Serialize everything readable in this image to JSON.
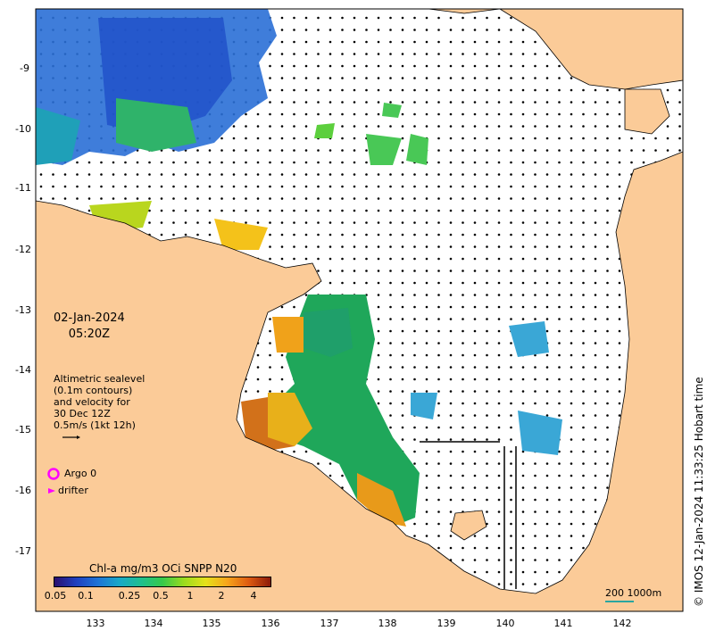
{
  "map": {
    "date_line1": "02-Jan-2024",
    "date_line2": "05:20Z",
    "altimetry_legend": [
      "Altimetric sealevel",
      "(0.1m contours)",
      "and velocity for",
      "30 Dec 12Z",
      "0.5m/s (1kt 12h)"
    ],
    "argo_label": "Argo 0",
    "drifter_label": "drifter",
    "colorbar_title": "Chl-a mg/m3 OCi SNPP N20",
    "colorbar_ticks": [
      "0.05",
      "0.1",
      "0.25",
      "0.5",
      "1",
      "2",
      "4"
    ],
    "credit": "© IMOS 12-Jan-2024 11:33:25 Hobart time",
    "scale_label": "200  1000m",
    "lat_ticks": [
      "-9",
      "-10",
      "-11",
      "-12",
      "-13",
      "-14",
      "-15",
      "-16",
      "-17"
    ],
    "lon_ticks": [
      "133",
      "134",
      "135",
      "136",
      "137",
      "138",
      "139",
      "140",
      "141",
      "142"
    ],
    "colors": {
      "land": "#fbcb98",
      "ocean": "#ffffff",
      "argo_marker": "#ff00ff",
      "drifter_marker": "#ff00ff",
      "scale_bar": "#2aa6a0"
    }
  }
}
